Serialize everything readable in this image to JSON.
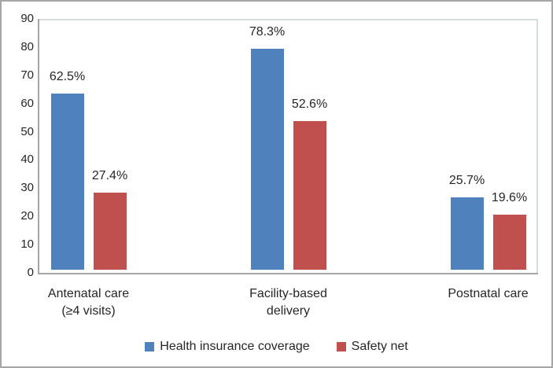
{
  "chart_data": {
    "type": "bar",
    "title": "",
    "xlabel": "",
    "ylabel": "",
    "categories": [
      "Antenatal care (≥4 visits)",
      "Facility-based delivery",
      "Postnatal care"
    ],
    "category_label_lines": [
      [
        "Antenatal care",
        "(≥4 visits)"
      ],
      [
        "Facility-based",
        "delivery"
      ],
      [
        "Postnatal care"
      ]
    ],
    "series": [
      {
        "name": "Health insurance coverage",
        "color": "#4F81BD",
        "values": [
          62.5,
          78.3,
          25.7
        ],
        "data_labels": [
          "62.5%",
          "78.3%",
          "25.7%"
        ]
      },
      {
        "name": "Safety net",
        "color": "#C0504D",
        "values": [
          27.4,
          52.6,
          19.6
        ],
        "data_labels": [
          "27.4%",
          "52.6%",
          "19.6%"
        ]
      }
    ],
    "y_axis": {
      "min": 0,
      "max": 90,
      "tick_step": 10,
      "tick_labels": [
        "0",
        "10",
        "20",
        "30",
        "40",
        "50",
        "60",
        "70",
        "80",
        "90"
      ]
    },
    "grid": false,
    "legend": {
      "position": "bottom",
      "entries": [
        "Health insurance coverage",
        "Safety net"
      ]
    },
    "colors": {
      "axis_line": "#a6a6a6",
      "plot_border": "#d5dddd",
      "frame": "#a6a6a6",
      "text": "#262626",
      "background": "#ffffff"
    }
  }
}
